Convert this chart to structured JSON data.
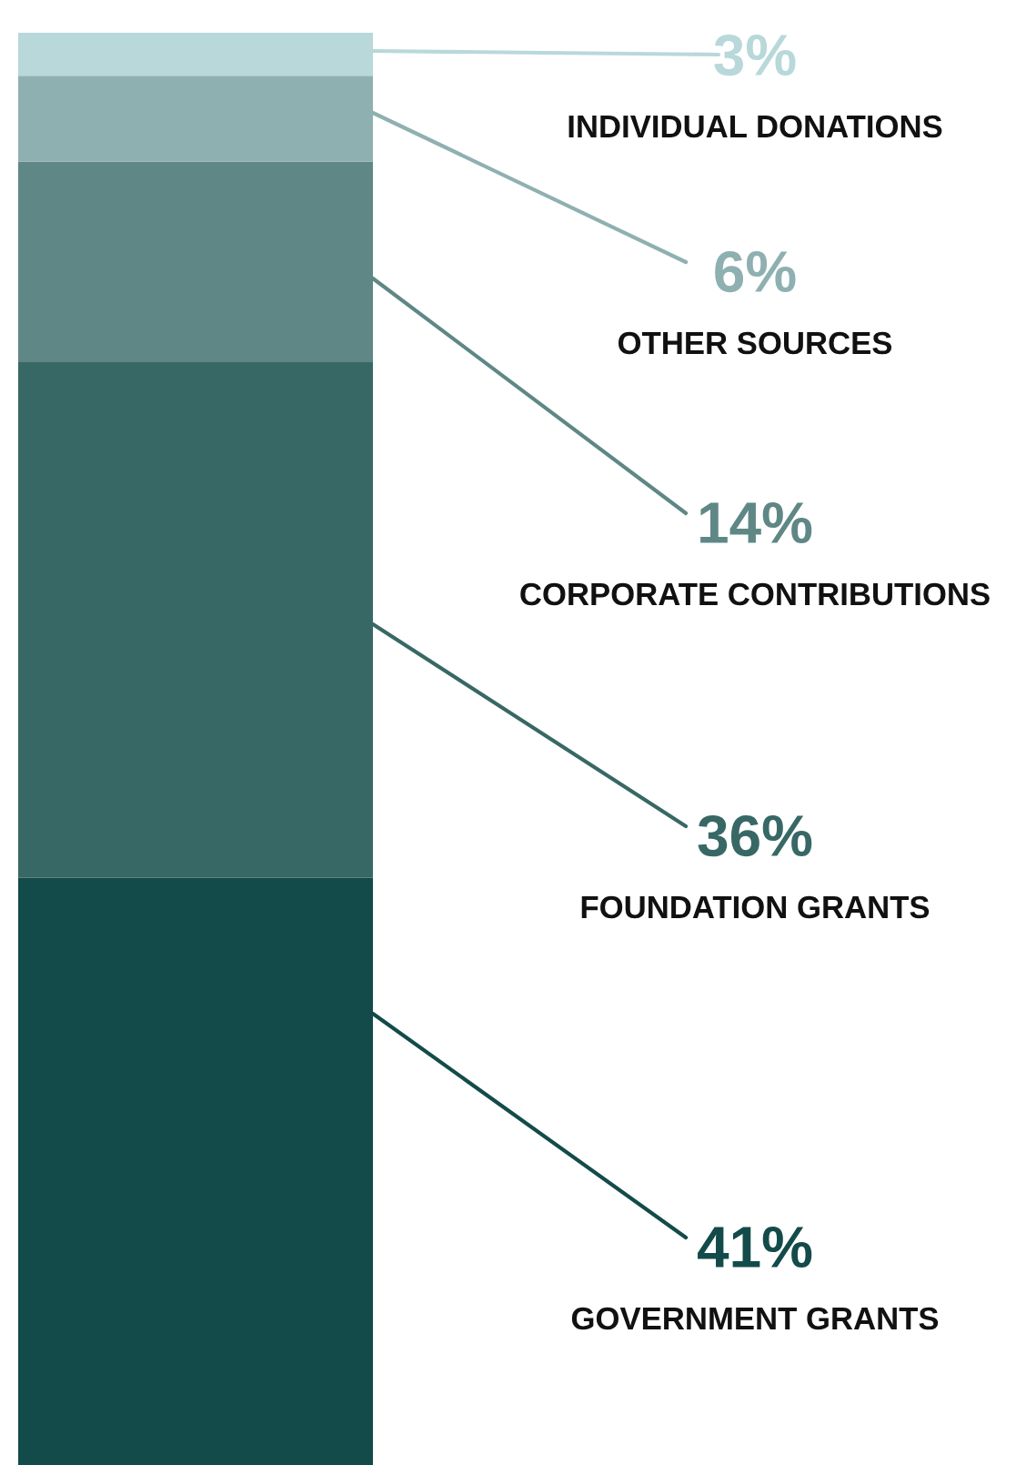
{
  "chart_data": {
    "type": "bar",
    "stacked": true,
    "categories": [
      null
    ],
    "ylim": [
      0,
      100
    ],
    "tick_labels": false,
    "legend": false,
    "series": [
      {
        "name": "GOVERNMENT GRANTS",
        "color": "#134b4a",
        "values": [
          41
        ],
        "value_labels": [
          "41%"
        ]
      },
      {
        "name": "FOUNDATION GRANTS",
        "color": "#386865",
        "values": [
          36
        ],
        "value_labels": [
          "36%"
        ]
      },
      {
        "name": "CORPORATE CONTRIBUTIONS",
        "color": "#5f8785",
        "values": [
          14
        ],
        "value_labels": [
          "14%"
        ]
      },
      {
        "name": "OTHER SOURCES",
        "color": "#8fb0b0",
        "values": [
          6
        ],
        "value_labels": [
          "6%"
        ]
      },
      {
        "name": "INDIVIDUAL DONATIONS",
        "color": "#b8d8da",
        "values": [
          3
        ],
        "value_labels": [
          "3%"
        ]
      }
    ]
  }
}
